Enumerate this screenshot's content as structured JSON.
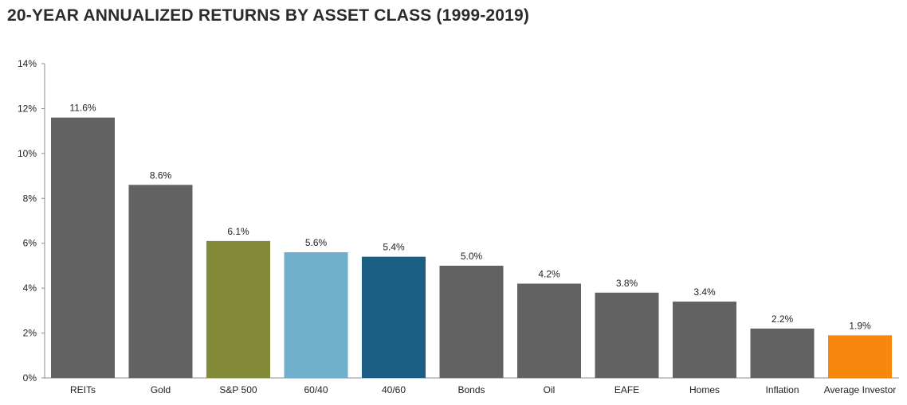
{
  "chart_data": {
    "type": "bar",
    "title": "20-YEAR ANNUALIZED RETURNS BY ASSET CLASS (1999-2019)",
    "xlabel": "",
    "ylabel": "",
    "ylim": [
      0,
      14
    ],
    "yticks": [
      "0%",
      "2%",
      "4%",
      "6%",
      "8%",
      "10%",
      "12%",
      "14%"
    ],
    "categories": [
      "REITs",
      "Gold",
      "S&P 500",
      "60/40",
      "40/60",
      "Bonds",
      "Oil",
      "EAFE",
      "Homes",
      "Inflation",
      "Average Investor"
    ],
    "values": [
      11.6,
      8.6,
      6.1,
      5.6,
      5.4,
      5.0,
      4.2,
      3.8,
      3.4,
      2.2,
      1.9
    ],
    "value_labels": [
      "11.6%",
      "8.6%",
      "6.1%",
      "5.6%",
      "5.4%",
      "5.0%",
      "4.2%",
      "3.8%",
      "3.4%",
      "2.2%",
      "1.9%"
    ],
    "colors": [
      "#626262",
      "#626262",
      "#838a39",
      "#71b0cc",
      "#1b5f85",
      "#626262",
      "#626262",
      "#626262",
      "#626262",
      "#626262",
      "#f7870f"
    ],
    "grid": false,
    "legend": "none"
  }
}
